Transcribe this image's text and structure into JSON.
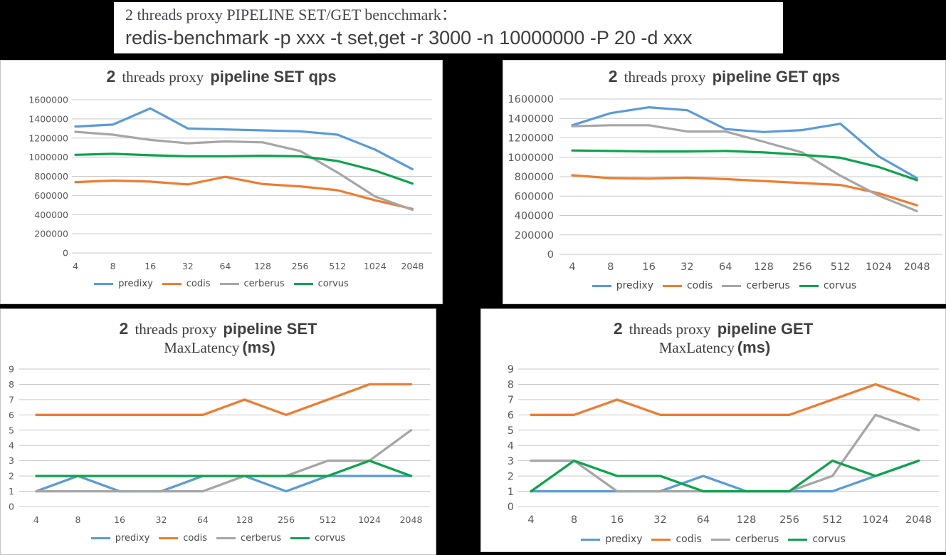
{
  "header": {
    "line1": "2 threads proxy PIPELINE SET/GET bencchmark：",
    "line2": "redis-benchmark -p xxx -t set,get -r 3000 -n 10000000 -P 20 -d xxx"
  },
  "colors": {
    "predixy": "#5B9BD5",
    "codis": "#ED7D31",
    "cerberus": "#A6A6A6",
    "corvus": "#0FA24E",
    "grid": "#C9C9C9",
    "tick_text": "#595959",
    "title_text": "#404040",
    "page_background": "#000000",
    "panel_background": "#FFFFFF"
  },
  "legend_entries": [
    "predixy",
    "codis",
    "cerberus",
    "corvus"
  ],
  "chart_data": [
    {
      "id": "set-qps",
      "type": "line",
      "title": {
        "num": "2",
        "serif": "threads proxy",
        "main": "pipeline SET qps"
      },
      "categories": [
        "4",
        "8",
        "16",
        "32",
        "64",
        "128",
        "256",
        "512",
        "1024",
        "2048"
      ],
      "xlabel": "",
      "ylabel": "",
      "ylim": [
        0,
        1600000
      ],
      "ystep": 200000,
      "grid": true,
      "legend_position": "bottom",
      "series": [
        {
          "name": "predixy",
          "values": [
            1320000,
            1340000,
            1510000,
            1300000,
            1290000,
            1280000,
            1270000,
            1235000,
            1080000,
            875000
          ]
        },
        {
          "name": "codis",
          "values": [
            740000,
            755000,
            745000,
            715000,
            795000,
            720000,
            695000,
            655000,
            550000,
            460000
          ]
        },
        {
          "name": "cerberus",
          "values": [
            1265000,
            1235000,
            1180000,
            1145000,
            1165000,
            1155000,
            1065000,
            840000,
            590000,
            450000
          ]
        },
        {
          "name": "corvus",
          "values": [
            1025000,
            1035000,
            1020000,
            1010000,
            1010000,
            1015000,
            1010000,
            960000,
            860000,
            725000
          ]
        }
      ]
    },
    {
      "id": "get-qps",
      "type": "line",
      "title": {
        "num": "2",
        "serif": "threads proxy",
        "main": "pipeline GET qps"
      },
      "categories": [
        "4",
        "8",
        "16",
        "32",
        "64",
        "128",
        "256",
        "512",
        "1024",
        "2048"
      ],
      "xlabel": "",
      "ylabel": "",
      "ylim": [
        0,
        1600000
      ],
      "ystep": 200000,
      "grid": true,
      "legend_position": "bottom",
      "series": [
        {
          "name": "predixy",
          "values": [
            1330000,
            1455000,
            1515000,
            1485000,
            1290000,
            1260000,
            1280000,
            1345000,
            1010000,
            785000
          ]
        },
        {
          "name": "codis",
          "values": [
            815000,
            785000,
            780000,
            790000,
            775000,
            755000,
            735000,
            715000,
            630000,
            505000
          ]
        },
        {
          "name": "cerberus",
          "values": [
            1320000,
            1330000,
            1330000,
            1265000,
            1265000,
            1160000,
            1050000,
            810000,
            605000,
            445000
          ]
        },
        {
          "name": "corvus",
          "values": [
            1070000,
            1065000,
            1060000,
            1060000,
            1065000,
            1050000,
            1025000,
            995000,
            900000,
            765000
          ]
        }
      ]
    },
    {
      "id": "set-latency",
      "type": "line",
      "title": {
        "num": "2",
        "serif": "threads proxy",
        "main": "pipeline SET",
        "line2_serif": "MaxLatency",
        "line2_bold": "(ms)"
      },
      "categories": [
        "4",
        "8",
        "16",
        "32",
        "64",
        "128",
        "256",
        "512",
        "1024",
        "2048"
      ],
      "xlabel": "",
      "ylabel": "",
      "ylim": [
        0,
        9
      ],
      "ystep": 1,
      "grid": true,
      "legend_position": "bottom",
      "series": [
        {
          "name": "predixy",
          "values": [
            1,
            2,
            1,
            1,
            2,
            2,
            1,
            2,
            2,
            2
          ]
        },
        {
          "name": "codis",
          "values": [
            6,
            6,
            6,
            6,
            6,
            7,
            6,
            7,
            8,
            8
          ]
        },
        {
          "name": "cerberus",
          "values": [
            1,
            1,
            1,
            1,
            1,
            2,
            2,
            3,
            3,
            5
          ]
        },
        {
          "name": "corvus",
          "values": [
            2,
            2,
            2,
            2,
            2,
            2,
            2,
            2,
            3,
            2
          ]
        }
      ]
    },
    {
      "id": "get-latency",
      "type": "line",
      "title": {
        "num": "2",
        "serif": "threads proxy",
        "main": "pipeline GET",
        "line2_serif": "MaxLatency",
        "line2_bold": "(ms)"
      },
      "categories": [
        "4",
        "8",
        "16",
        "32",
        "64",
        "128",
        "256",
        "512",
        "1024",
        "2048"
      ],
      "xlabel": "",
      "ylabel": "",
      "ylim": [
        0,
        9
      ],
      "ystep": 1,
      "grid": true,
      "legend_position": "bottom",
      "series": [
        {
          "name": "predixy",
          "values": [
            1,
            1,
            1,
            1,
            2,
            1,
            1,
            1,
            2,
            3
          ]
        },
        {
          "name": "codis",
          "values": [
            6,
            6,
            7,
            6,
            6,
            6,
            6,
            7,
            8,
            7
          ]
        },
        {
          "name": "cerberus",
          "values": [
            3,
            3,
            1,
            1,
            1,
            1,
            1,
            2,
            6,
            5
          ]
        },
        {
          "name": "corvus",
          "values": [
            1,
            3,
            2,
            2,
            1,
            1,
            1,
            3,
            2,
            3
          ]
        }
      ]
    }
  ]
}
